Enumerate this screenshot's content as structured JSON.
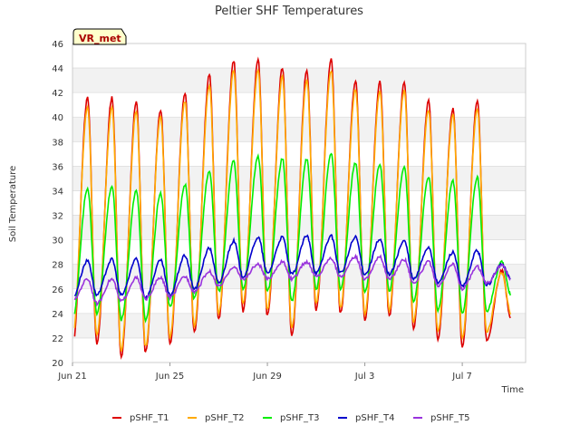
{
  "chart_data": {
    "type": "line",
    "title": "Peltier SHF Temperatures",
    "xlabel": "Time",
    "ylabel": "Soil Temperature",
    "badge": "VR_met",
    "ylim": [
      20,
      46
    ],
    "xlim": [
      0,
      18.6
    ],
    "y_ticks": [
      20,
      22,
      24,
      26,
      28,
      30,
      32,
      34,
      36,
      38,
      40,
      42,
      44,
      46
    ],
    "x_ticks": [
      {
        "day": 0,
        "label": "Jun 21"
      },
      {
        "day": 4,
        "label": "Jun 25"
      },
      {
        "day": 8,
        "label": "Jun 29"
      },
      {
        "day": 12,
        "label": "Jul 3"
      },
      {
        "day": 16,
        "label": "Jul 7"
      }
    ],
    "grid": "horizontal bands",
    "legend_position": "bottom",
    "peak_day_fraction": 0.62,
    "series": [
      {
        "name": "pSHF_T1",
        "color": "#dd0000",
        "daily_min": [
          21.0,
          21.5,
          20.5,
          20.8,
          21.5,
          22.5,
          23.5,
          24.2,
          23.8,
          22.2,
          24.3,
          24.0,
          23.5,
          23.8,
          22.8,
          21.8,
          21.3,
          21.8,
          23.5
        ],
        "daily_max": [
          41.6,
          41.6,
          41.2,
          40.6,
          42.0,
          43.5,
          44.6,
          44.7,
          44.0,
          43.8,
          44.7,
          43.0,
          42.9,
          42.8,
          41.3,
          40.7,
          41.3,
          27.5
        ]
      },
      {
        "name": "pSHF_T2",
        "color": "#ffaa00",
        "daily_min": [
          22.0,
          22.2,
          21.0,
          21.3,
          22.0,
          23.0,
          24.0,
          24.8,
          24.3,
          22.8,
          24.8,
          24.5,
          24.0,
          24.3,
          23.3,
          22.5,
          22.0,
          22.5,
          24.0
        ],
        "daily_max": [
          40.8,
          40.8,
          40.5,
          40.0,
          41.3,
          42.6,
          43.8,
          43.9,
          43.3,
          43.0,
          43.8,
          42.3,
          42.1,
          42.1,
          40.6,
          40.2,
          40.7,
          27.3
        ]
      },
      {
        "name": "pSHF_T3",
        "color": "#00ee00",
        "daily_min": [
          23.5,
          24.0,
          23.5,
          23.5,
          24.5,
          25.2,
          25.8,
          26.0,
          25.8,
          25.0,
          26.0,
          26.0,
          25.8,
          25.8,
          25.0,
          24.3,
          24.0,
          24.2,
          25.5
        ],
        "daily_max": [
          34.2,
          34.4,
          34.0,
          33.8,
          34.5,
          35.6,
          36.4,
          36.8,
          36.6,
          36.6,
          37.0,
          36.3,
          36.1,
          36.0,
          35.1,
          34.8,
          35.1,
          28.2
        ]
      },
      {
        "name": "pSHF_T4",
        "color": "#0000cc",
        "daily_min": [
          25.3,
          25.5,
          25.5,
          25.3,
          25.5,
          26.0,
          26.5,
          27.0,
          27.3,
          27.2,
          27.3,
          27.3,
          27.2,
          27.2,
          26.8,
          26.5,
          26.2,
          26.3,
          26.8
        ],
        "daily_max": [
          28.3,
          28.4,
          28.4,
          28.3,
          28.7,
          29.3,
          29.9,
          30.2,
          30.2,
          30.3,
          30.3,
          30.2,
          30.0,
          29.9,
          29.4,
          29.0,
          29.1,
          28.0
        ]
      },
      {
        "name": "pSHF_T5",
        "color": "#9933dd",
        "daily_min": [
          25.0,
          24.8,
          25.0,
          25.2,
          25.3,
          25.8,
          26.2,
          26.8,
          26.8,
          26.8,
          27.0,
          27.0,
          26.8,
          26.8,
          26.5,
          26.2,
          26.0,
          26.5,
          26.8
        ],
        "daily_max": [
          26.8,
          26.8,
          26.9,
          26.9,
          27.0,
          27.4,
          27.8,
          28.0,
          28.2,
          28.2,
          28.5,
          28.6,
          28.6,
          28.4,
          28.2,
          28.0,
          27.8,
          27.9
        ]
      }
    ]
  }
}
